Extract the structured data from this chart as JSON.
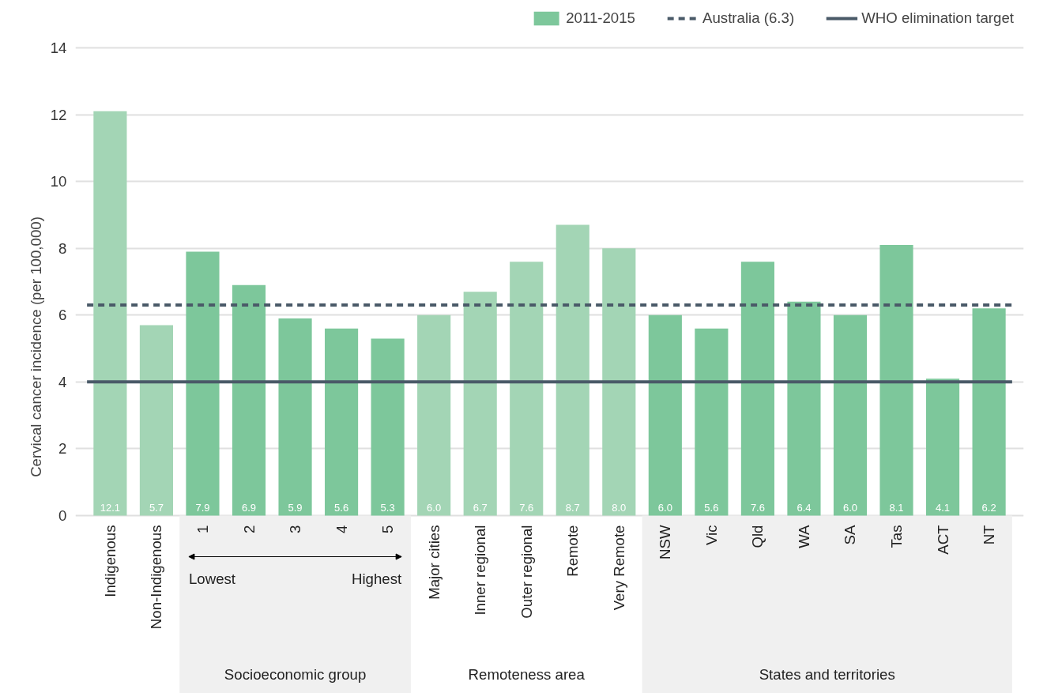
{
  "chart_data": {
    "type": "bar",
    "ylabel": "Cervical cancer incidence (per 100,000)",
    "categories": [
      "Indigenous",
      "Non-Indigenous",
      "1",
      "2",
      "3",
      "4",
      "5",
      "Major cities",
      "Inner regional",
      "Outer regional",
      "Remote",
      "Very Remote",
      "NSW",
      "Vic",
      "Qld",
      "WA",
      "SA",
      "Tas",
      "ACT",
      "NT"
    ],
    "series": [
      {
        "name": "2011-2015",
        "color": "#7dc79b",
        "colors": [
          "#a3d5b5",
          "#a3d5b5",
          "#7dc79b",
          "#7dc79b",
          "#7dc79b",
          "#7dc79b",
          "#7dc79b",
          "#a3d5b5",
          "#a3d5b5",
          "#a3d5b5",
          "#a3d5b5",
          "#a3d5b5",
          "#7dc79b",
          "#7dc79b",
          "#7dc79b",
          "#7dc79b",
          "#7dc79b",
          "#7dc79b",
          "#7dc79b",
          "#7dc79b"
        ],
        "values": [
          12.1,
          5.7,
          7.9,
          6.9,
          5.9,
          5.6,
          5.3,
          6.0,
          6.7,
          7.6,
          8.7,
          8.0,
          6.0,
          5.6,
          7.6,
          6.4,
          6.0,
          8.1,
          4.1,
          6.2
        ],
        "value_labels": [
          "12.1",
          "5.7",
          "7.9",
          "6.9",
          "5.9",
          "5.6",
          "5.3",
          "6.0",
          "6.7",
          "7.6",
          "8.7",
          "8.0",
          "6.0",
          "5.6",
          "7.6",
          "6.4",
          "6.0",
          "8.1",
          "4.1",
          "6.2"
        ]
      }
    ],
    "ylim": [
      0,
      14
    ],
    "yticks": [
      0,
      2,
      4,
      6,
      8,
      10,
      12,
      14
    ],
    "grid": "y",
    "legend": "top right",
    "ref_lines": [
      {
        "axis": "y",
        "value": 6.3,
        "label": "Australia (6.3)",
        "color": "#4a5a68",
        "line_style": "dashed"
      },
      {
        "axis": "y",
        "value": 4,
        "label": "WHO elimination target",
        "color": "#4a5a68",
        "line_style": "solid"
      }
    ],
    "annotations": [
      "Lowest",
      "Highest",
      "Socioeconomic group",
      "Remoteness area",
      "States and territories"
    ]
  }
}
